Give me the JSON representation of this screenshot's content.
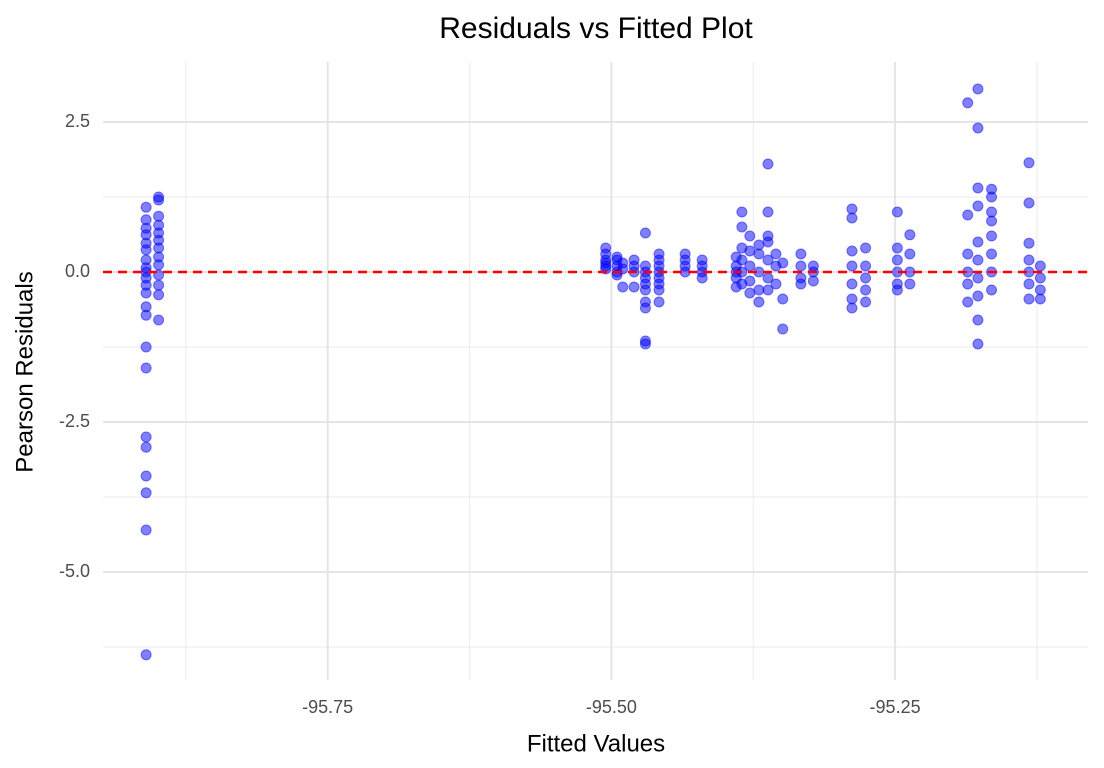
{
  "chart_data": {
    "type": "scatter",
    "title": "Residuals vs Fitted Plot",
    "x_label": "Fitted Values",
    "y_label": "Pearson Residuals",
    "x": [
      -95.91,
      -95.91,
      -95.91,
      -95.91,
      -95.91,
      -95.91,
      -95.91,
      -95.91,
      -95.91,
      -95.91,
      -95.91,
      -95.91,
      -95.91,
      -95.91,
      -95.91,
      -95.91,
      -95.91,
      -95.91,
      -95.91,
      -95.91,
      -95.91,
      -95.91,
      -95.899,
      -95.899,
      -95.899,
      -95.899,
      -95.899,
      -95.899,
      -95.899,
      -95.899,
      -95.899,
      -95.899,
      -95.899,
      -95.899,
      -95.899,
      -95.505,
      -95.505,
      -95.505,
      -95.505,
      -95.505,
      -95.505,
      -95.495,
      -95.495,
      -95.495,
      -95.495,
      -95.495,
      -95.49,
      -95.49,
      -95.49,
      -95.48,
      -95.48,
      -95.48,
      -95.48,
      -95.47,
      -95.47,
      -95.47,
      -95.47,
      -95.47,
      -95.47,
      -95.47,
      -95.47,
      -95.47,
      -95.47,
      -95.458,
      -95.458,
      -95.458,
      -95.458,
      -95.458,
      -95.458,
      -95.458,
      -95.458,
      -95.435,
      -95.435,
      -95.435,
      -95.435,
      -95.42,
      -95.42,
      -95.42,
      -95.42,
      -95.39,
      -95.39,
      -95.39,
      -95.39,
      -95.39,
      -95.385,
      -95.385,
      -95.385,
      -95.385,
      -95.385,
      -95.385,
      -95.378,
      -95.378,
      -95.378,
      -95.378,
      -95.378,
      -95.37,
      -95.37,
      -95.37,
      -95.37,
      -95.37,
      -95.362,
      -95.362,
      -95.362,
      -95.362,
      -95.362,
      -95.362,
      -95.362,
      -95.355,
      -95.355,
      -95.355,
      -95.349,
      -95.349,
      -95.349,
      -95.333,
      -95.333,
      -95.333,
      -95.333,
      -95.322,
      -95.322,
      -95.322,
      -95.288,
      -95.288,
      -95.288,
      -95.288,
      -95.288,
      -95.288,
      -95.288,
      -95.276,
      -95.276,
      -95.276,
      -95.276,
      -95.276,
      -95.248,
      -95.248,
      -95.248,
      -95.248,
      -95.248,
      -95.248,
      -95.237,
      -95.237,
      -95.237,
      -95.237,
      -95.186,
      -95.186,
      -95.186,
      -95.186,
      -95.186,
      -95.186,
      -95.177,
      -95.177,
      -95.177,
      -95.177,
      -95.177,
      -95.177,
      -95.177,
      -95.177,
      -95.177,
      -95.177,
      -95.165,
      -95.165,
      -95.165,
      -95.165,
      -95.165,
      -95.165,
      -95.165,
      -95.165,
      -95.132,
      -95.132,
      -95.132,
      -95.132,
      -95.132,
      -95.132,
      -95.132,
      -95.122,
      -95.122,
      -95.122,
      -95.122
    ],
    "values": [
      1.08,
      0.87,
      0.73,
      0.62,
      0.48,
      0.37,
      0.2,
      0.07,
      0,
      -0.1,
      -0.22,
      -0.35,
      -0.58,
      -0.72,
      -1.25,
      -1.6,
      -2.75,
      -2.92,
      -3.4,
      -3.68,
      -4.3,
      -6.38,
      1.25,
      1.2,
      0.93,
      0.78,
      0.65,
      0.53,
      0.4,
      0.25,
      0.12,
      -0.05,
      -0.22,
      -0.38,
      -0.8,
      0.4,
      0.3,
      0.2,
      0.1,
      0.05,
      0.15,
      0.25,
      0.1,
      0,
      0.2,
      -0.05,
      -0.25,
      0.15,
      0.05,
      0.2,
      0.1,
      -0.25,
      0,
      0.65,
      0.1,
      -0.1,
      -0.3,
      -0.5,
      -0.6,
      -1.15,
      -1.2,
      0,
      -0.2,
      0.3,
      0.2,
      0.1,
      0,
      -0.1,
      -0.2,
      -0.3,
      -0.5,
      0.3,
      0.2,
      0.1,
      0,
      0.2,
      0.1,
      0,
      -0.1,
      0.25,
      0.1,
      0,
      -0.1,
      -0.25,
      1.0,
      0.75,
      0.4,
      0.2,
      0,
      -0.2,
      0.6,
      0.35,
      0.1,
      -0.15,
      -0.35,
      0.45,
      0.3,
      0,
      -0.3,
      -0.5,
      1.8,
      1.0,
      0.6,
      0.5,
      0.2,
      -0.1,
      -0.3,
      0.3,
      0.1,
      -0.2,
      0.15,
      -0.45,
      -0.95,
      0.3,
      0.1,
      -0.1,
      -0.2,
      0.1,
      0,
      -0.15,
      1.05,
      0.9,
      0.35,
      0.1,
      -0.2,
      -0.45,
      -0.6,
      0.4,
      0.1,
      -0.1,
      -0.3,
      -0.5,
      1.0,
      0.4,
      0.2,
      0,
      -0.2,
      -0.3,
      0.62,
      0.3,
      0,
      -0.2,
      2.82,
      0.95,
      0.3,
      0,
      -0.2,
      -0.5,
      3.05,
      2.4,
      1.4,
      1.1,
      0.5,
      0.2,
      -0.1,
      -0.4,
      -0.8,
      -1.2,
      1.38,
      1.25,
      1.0,
      0.85,
      0.6,
      0.3,
      0,
      -0.3,
      1.82,
      1.15,
      0.48,
      0.2,
      0,
      -0.2,
      -0.45,
      0.1,
      -0.1,
      -0.3,
      -0.45
    ],
    "color": "#0000ff",
    "marker_opacity": 0.5,
    "hline": 0,
    "hline_color": "#ff0000",
    "xlim": [
      -95.948,
      -95.08
    ],
    "xticks": [
      -95.75,
      {
        "value": -95.5,
        "label": "-95.50"
      },
      -95.25
    ],
    "x_minor_ticks": [
      -95.875,
      -95.625,
      -95.375,
      -95.125
    ],
    "ylim": [
      -6.8,
      3.5
    ],
    "yticks": [
      2.5,
      {
        "value": 0,
        "label": "0.0"
      },
      -2.5,
      {
        "value": -5,
        "label": "-5.0"
      }
    ],
    "y_minor_ticks": [
      1.25,
      -1.25,
      -3.75,
      -6.25
    ],
    "grid": true
  }
}
